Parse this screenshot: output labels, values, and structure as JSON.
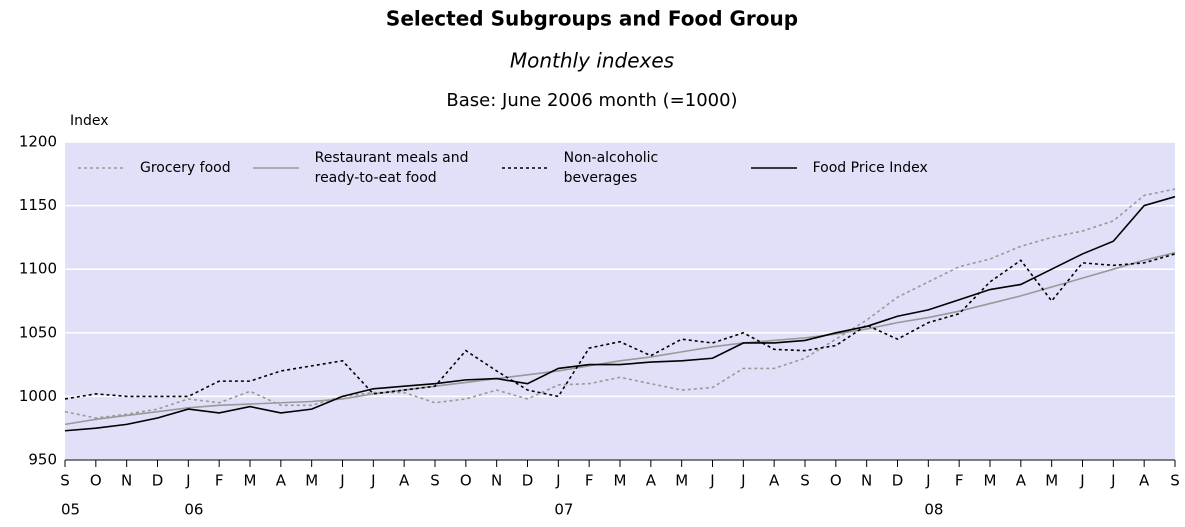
{
  "chart_data": {
    "type": "line",
    "title": "Selected Subgroups and Food Group",
    "subtitle": "Monthly indexes",
    "note": "Base: June 2006 month (=1000)",
    "y_label": "Index",
    "categories": [
      "S",
      "O",
      "N",
      "D",
      "J",
      "F",
      "M",
      "A",
      "M",
      "J",
      "J",
      "A",
      "S",
      "O",
      "N",
      "D",
      "J",
      "F",
      "M",
      "A",
      "M",
      "J",
      "J",
      "A",
      "S",
      "O",
      "N",
      "D",
      "J",
      "F",
      "M",
      "A",
      "M",
      "J",
      "J",
      "A",
      "S"
    ],
    "years": [
      "05",
      null,
      null,
      null,
      "06",
      null,
      null,
      null,
      null,
      null,
      null,
      null,
      null,
      null,
      null,
      null,
      "07",
      null,
      null,
      null,
      null,
      null,
      null,
      null,
      null,
      null,
      null,
      null,
      "08",
      null,
      null,
      null,
      null,
      null,
      null,
      null,
      null
    ],
    "ylim": [
      950,
      1200
    ],
    "yticks": [
      950,
      1000,
      1050,
      1100,
      1150,
      1200
    ],
    "grid": true,
    "background": "#e0e0f8",
    "series": [
      {
        "name": "Grocery food",
        "color": "#999999",
        "line_style": "dotted",
        "values": [
          988,
          983,
          986,
          990,
          998,
          995,
          1004,
          993,
          993,
          1000,
          1003,
          1003,
          995,
          998,
          1005,
          998,
          1009,
          1010,
          1015,
          1010,
          1005,
          1007,
          1022,
          1022,
          1030,
          1045,
          1060,
          1078,
          1090,
          1102,
          1108,
          1118,
          1125,
          1130,
          1138,
          1158,
          1163
        ]
      },
      {
        "name": "Restaurant meals and ready-to-eat food",
        "color": "#999999",
        "line_style": "solid",
        "values": [
          978,
          982,
          985,
          988,
          991,
          993,
          994,
          995,
          996,
          998,
          1002,
          1005,
          1008,
          1011,
          1014,
          1017,
          1020,
          1024,
          1028,
          1031,
          1035,
          1039,
          1042,
          1044,
          1046,
          1049,
          1053,
          1058,
          1062,
          1067,
          1073,
          1079,
          1086,
          1093,
          1100,
          1107,
          1113
        ]
      },
      {
        "name": "Non-alcoholic beverages",
        "color": "#000000",
        "line_style": "dotted",
        "values": [
          998,
          1002,
          1000,
          1000,
          1000,
          1012,
          1012,
          1020,
          1024,
          1028,
          1002,
          1005,
          1008,
          1036,
          1020,
          1005,
          1000,
          1038,
          1043,
          1032,
          1045,
          1042,
          1050,
          1037,
          1036,
          1040,
          1056,
          1045,
          1058,
          1065,
          1090,
          1107,
          1075,
          1105,
          1103,
          1105,
          1112
        ]
      },
      {
        "name": "Food Price Index",
        "color": "#000000",
        "line_style": "solid",
        "values": [
          973,
          975,
          978,
          983,
          990,
          987,
          992,
          987,
          990,
          1000,
          1006,
          1008,
          1010,
          1013,
          1014,
          1010,
          1022,
          1025,
          1025,
          1027,
          1028,
          1030,
          1042,
          1042,
          1044,
          1050,
          1055,
          1063,
          1068,
          1076,
          1084,
          1088,
          1100,
          1112,
          1122,
          1150,
          1157
        ]
      }
    ]
  }
}
